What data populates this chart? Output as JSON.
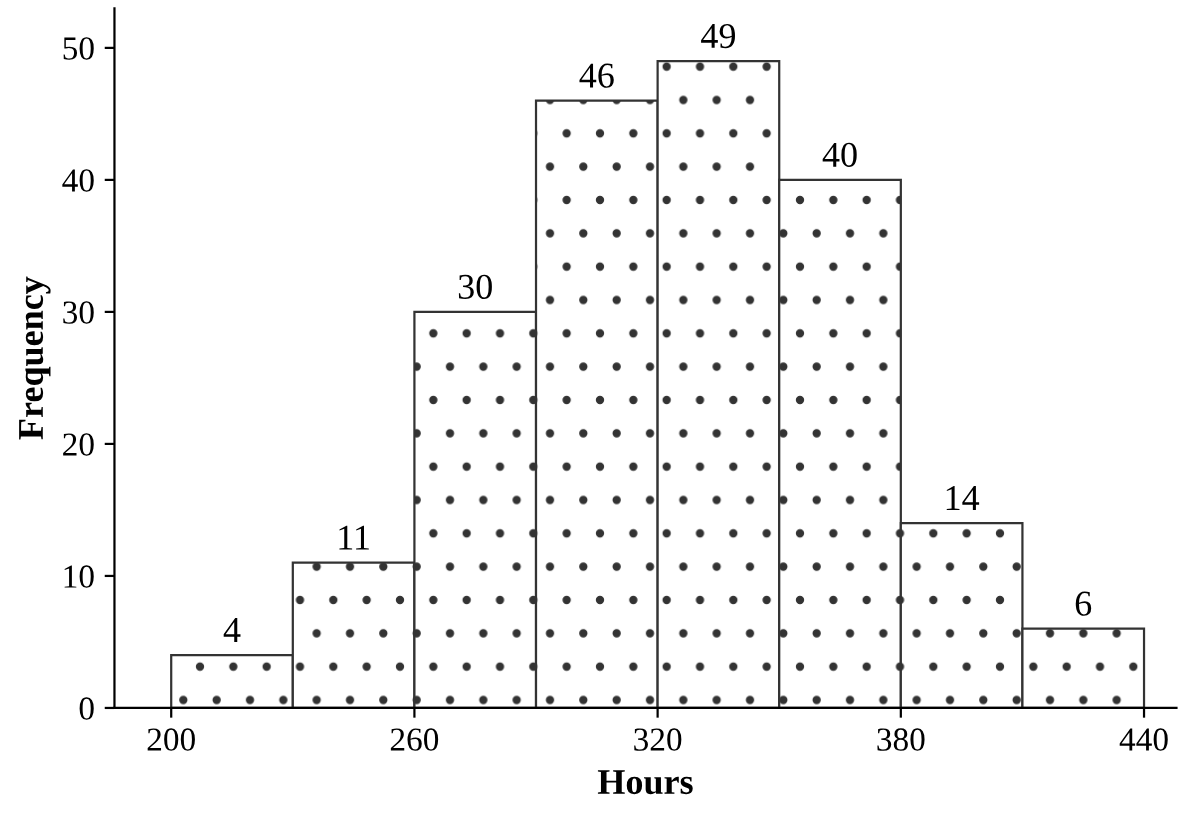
{
  "chart_data": {
    "type": "histogram",
    "xlabel": "Hours",
    "ylabel": "Frequency",
    "bins": [
      200,
      230,
      260,
      290,
      320,
      350,
      380,
      410,
      440
    ],
    "values": [
      4,
      11,
      30,
      46,
      49,
      40,
      14,
      6
    ],
    "color": "#333333",
    "xlim": [
      186,
      448
    ],
    "ylim": [
      0,
      53
    ],
    "xticks": [
      200,
      260,
      320,
      380,
      440
    ],
    "yticks": [
      0,
      10,
      20,
      30,
      40,
      50
    ],
    "data_labels": true,
    "grid": false,
    "legend": false
  }
}
